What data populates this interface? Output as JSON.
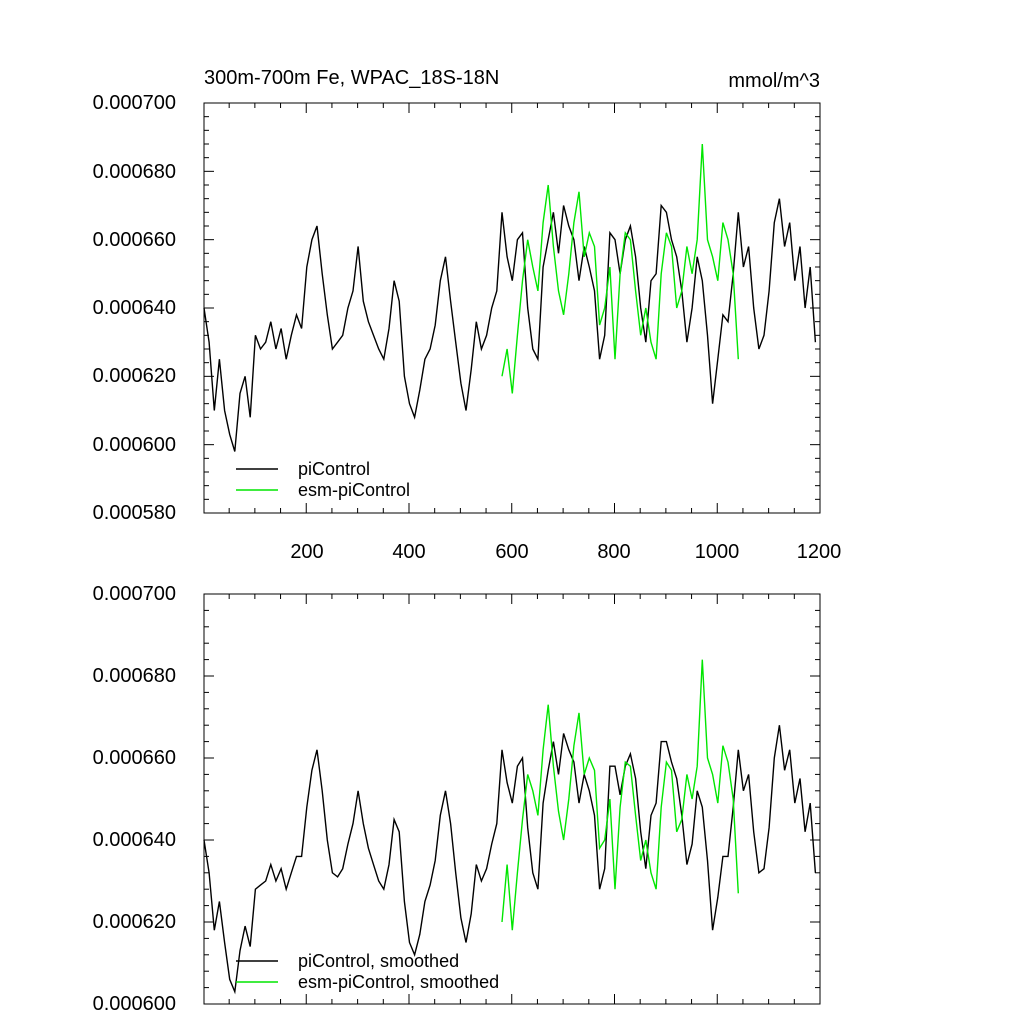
{
  "chart_data": [
    {
      "type": "line",
      "title": "300m-700m Fe, WPAC_18S-18N",
      "units": "mmol/m^3",
      "xlim": [
        1,
        1200
      ],
      "ylim": [
        0.00058,
        0.0007
      ],
      "xticks": [
        200,
        400,
        600,
        800,
        1000,
        1200
      ],
      "xtick_labels": [
        "200",
        "400",
        "600",
        "800",
        "1000",
        "1200"
      ],
      "yticks": [
        0.00058,
        0.0006,
        0.00062,
        0.00064,
        0.00066,
        0.00068,
        0.0007
      ],
      "ytick_labels": [
        "0.000580",
        "0.000600",
        "0.000620",
        "0.000640",
        "0.000660",
        "0.000680",
        "0.000700"
      ],
      "legend_position": "bottom-left",
      "series": [
        {
          "name": "piControl",
          "color": "#000000",
          "x_start": 1,
          "x_step": 10,
          "values": [
            0.00064,
            0.00063,
            0.00061,
            0.000625,
            0.00061,
            0.000603,
            0.000598,
            0.000615,
            0.00062,
            0.000608,
            0.000632,
            0.000628,
            0.00063,
            0.000636,
            0.000628,
            0.000634,
            0.000625,
            0.000632,
            0.000638,
            0.000634,
            0.000652,
            0.00066,
            0.000664,
            0.00065,
            0.000638,
            0.000628,
            0.00063,
            0.000632,
            0.00064,
            0.000645,
            0.000658,
            0.000642,
            0.000636,
            0.000632,
            0.000628,
            0.000625,
            0.000634,
            0.000648,
            0.000642,
            0.00062,
            0.000612,
            0.000608,
            0.000616,
            0.000625,
            0.000628,
            0.000635,
            0.000648,
            0.000655,
            0.000642,
            0.00063,
            0.000618,
            0.00061,
            0.000622,
            0.000636,
            0.000628,
            0.000632,
            0.00064,
            0.000645,
            0.000668,
            0.000655,
            0.000648,
            0.00066,
            0.000662,
            0.00064,
            0.000628,
            0.000625,
            0.000652,
            0.00066,
            0.000668,
            0.000656,
            0.00067,
            0.000664,
            0.00066,
            0.000648,
            0.000658,
            0.000652,
            0.000645,
            0.000625,
            0.000632,
            0.000662,
            0.00066,
            0.00065,
            0.00066,
            0.000664,
            0.000655,
            0.00064,
            0.00063,
            0.000648,
            0.00065,
            0.00067,
            0.000668,
            0.00066,
            0.000655,
            0.000645,
            0.00063,
            0.00064,
            0.000655,
            0.000648,
            0.000632,
            0.000612,
            0.000625,
            0.000638,
            0.000636,
            0.00065,
            0.000668,
            0.000652,
            0.000658,
            0.00064,
            0.000628,
            0.000632,
            0.000645,
            0.000665,
            0.000672,
            0.000658,
            0.000665,
            0.000648,
            0.000658,
            0.00064,
            0.000652,
            0.00063
          ]
        },
        {
          "name": "esm-piControl",
          "color": "#00e600",
          "x_start": 581,
          "x_step": 10,
          "values": [
            0.00062,
            0.000628,
            0.000615,
            0.000632,
            0.000648,
            0.00066,
            0.000652,
            0.000645,
            0.000665,
            0.000676,
            0.000658,
            0.000645,
            0.000638,
            0.00065,
            0.000665,
            0.000674,
            0.000655,
            0.000662,
            0.000658,
            0.000635,
            0.00064,
            0.000652,
            0.000625,
            0.00065,
            0.000662,
            0.00066,
            0.000645,
            0.000632,
            0.00064,
            0.00063,
            0.000625,
            0.00065,
            0.000662,
            0.000658,
            0.00064,
            0.000645,
            0.000658,
            0.00065,
            0.00066,
            0.000688,
            0.00066,
            0.000655,
            0.000648,
            0.000665,
            0.00066,
            0.00065,
            0.000625
          ]
        }
      ]
    },
    {
      "type": "line",
      "xlim": [
        1,
        1200
      ],
      "ylim": [
        0.0006,
        0.0007
      ],
      "yticks": [
        0.0006,
        0.00062,
        0.00064,
        0.00066,
        0.00068,
        0.0007
      ],
      "ytick_labels": [
        "0.000600",
        "0.000620",
        "0.000640",
        "0.000660",
        "0.000680",
        "0.000700"
      ],
      "legend_position": "bottom-left",
      "series": [
        {
          "name": "piControl, smoothed",
          "color": "#000000",
          "x_start": 1,
          "x_step": 10,
          "values": [
            0.00064,
            0.000632,
            0.000618,
            0.000625,
            0.000615,
            0.000606,
            0.000603,
            0.000613,
            0.000619,
            0.000614,
            0.000628,
            0.000629,
            0.00063,
            0.000634,
            0.00063,
            0.000633,
            0.000628,
            0.000632,
            0.000636,
            0.000636,
            0.000648,
            0.000657,
            0.000662,
            0.000652,
            0.00064,
            0.000632,
            0.000631,
            0.000633,
            0.000639,
            0.000644,
            0.000652,
            0.000644,
            0.000638,
            0.000634,
            0.00063,
            0.000628,
            0.000634,
            0.000645,
            0.000642,
            0.000625,
            0.000615,
            0.000612,
            0.000617,
            0.000625,
            0.000629,
            0.000635,
            0.000646,
            0.000652,
            0.000644,
            0.000632,
            0.000621,
            0.000615,
            0.000622,
            0.000634,
            0.00063,
            0.000633,
            0.000639,
            0.000644,
            0.000662,
            0.000654,
            0.000649,
            0.000658,
            0.00066,
            0.000643,
            0.000632,
            0.000628,
            0.000649,
            0.000657,
            0.000664,
            0.000656,
            0.000666,
            0.000662,
            0.000659,
            0.000649,
            0.000656,
            0.000652,
            0.000646,
            0.000628,
            0.000633,
            0.000658,
            0.000658,
            0.000651,
            0.000658,
            0.000661,
            0.000655,
            0.000642,
            0.000633,
            0.000646,
            0.000649,
            0.000664,
            0.000664,
            0.000659,
            0.000655,
            0.000646,
            0.000634,
            0.000639,
            0.000652,
            0.000648,
            0.000635,
            0.000618,
            0.000626,
            0.000636,
            0.000636,
            0.000648,
            0.000662,
            0.000652,
            0.000656,
            0.000642,
            0.000632,
            0.000633,
            0.000643,
            0.00066,
            0.000668,
            0.000657,
            0.000662,
            0.000649,
            0.000655,
            0.000642,
            0.000649,
            0.000632
          ]
        },
        {
          "name": "esm-piControl, smoothed",
          "color": "#00e600",
          "x_start": 581,
          "x_step": 10,
          "values": [
            0.00062,
            0.000634,
            0.000618,
            0.000632,
            0.000645,
            0.000656,
            0.000652,
            0.000646,
            0.000662,
            0.000673,
            0.000658,
            0.000647,
            0.00064,
            0.00065,
            0.000663,
            0.000671,
            0.000656,
            0.00066,
            0.000657,
            0.000638,
            0.00064,
            0.00065,
            0.000628,
            0.000648,
            0.000659,
            0.000658,
            0.000646,
            0.000635,
            0.00064,
            0.000632,
            0.000628,
            0.000648,
            0.000659,
            0.000657,
            0.000642,
            0.000645,
            0.000656,
            0.00065,
            0.000658,
            0.000684,
            0.00066,
            0.000656,
            0.000649,
            0.000663,
            0.000659,
            0.00065,
            0.000627
          ]
        }
      ]
    }
  ]
}
